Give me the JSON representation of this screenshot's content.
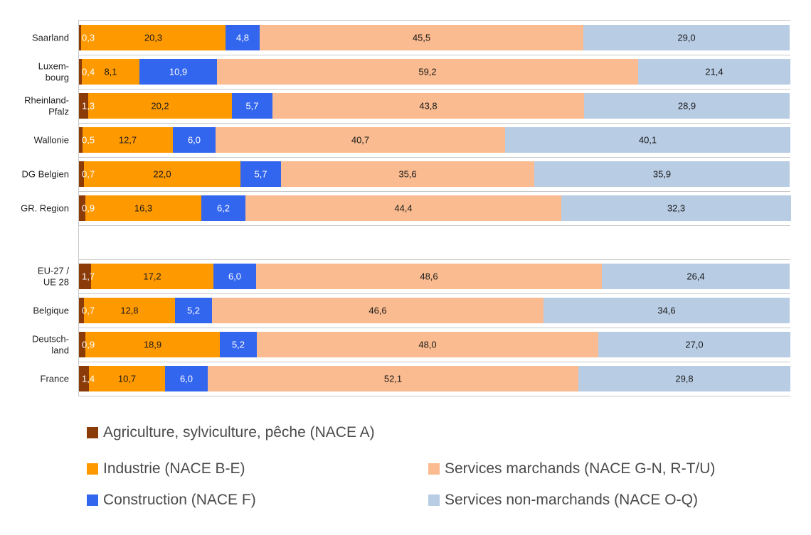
{
  "chart_data": {
    "type": "bar",
    "orientation": "horizontal",
    "stacked": true,
    "normalized_percent": true,
    "categories": [
      "Saarland",
      "Luxem-\nbourg",
      "Rheinland-\nPfalz",
      "Wallonie",
      "DG Belgien",
      "GR. Region",
      "EU-27 /\nUE 28",
      "Belgique",
      "Deutsch-\nland",
      "France"
    ],
    "series": [
      {
        "name": "Agriculture, sylviculture, pêche (NACE A)",
        "color": "#8b3b08",
        "label_color": "#ffffff",
        "values": [
          0.3,
          0.4,
          1.3,
          0.5,
          0.7,
          0.9,
          1.7,
          0.7,
          0.9,
          1.4
        ],
        "labels": [
          "0,3",
          "0,4",
          "1,3",
          "0,5",
          "0,7",
          "0,9",
          "1,7",
          "0,7",
          "0,9",
          "1,4"
        ]
      },
      {
        "name": "Industrie (NACE B-E)",
        "color": "#ff9900",
        "label_color": "#1a1a1a",
        "values": [
          20.3,
          8.1,
          20.2,
          12.7,
          22.0,
          16.3,
          17.2,
          12.8,
          18.9,
          10.7
        ],
        "labels": [
          "20,3",
          "8,1",
          "20,2",
          "12,7",
          "22,0",
          "16,3",
          "17,2",
          "12,8",
          "18,9",
          "10,7"
        ]
      },
      {
        "name": "Construction (NACE F)",
        "color": "#3366ee",
        "label_color": "#ffffff",
        "values": [
          4.8,
          10.9,
          5.7,
          6.0,
          5.7,
          6.2,
          6.0,
          5.2,
          5.2,
          6.0
        ],
        "labels": [
          "4,8",
          "10,9",
          "5,7",
          "6,0",
          "5,7",
          "6,2",
          "6,0",
          "5,2",
          "5,2",
          "6,0"
        ]
      },
      {
        "name": "Services marchands (NACE G-N, R-T/U)",
        "color": "#f9bb8f",
        "label_color": "#1a1a1a",
        "values": [
          45.5,
          59.2,
          43.8,
          40.7,
          35.6,
          44.4,
          48.6,
          46.6,
          48.0,
          52.1
        ],
        "labels": [
          "45,5",
          "59,2",
          "43,8",
          "40,7",
          "35,6",
          "44,4",
          "48,6",
          "46,6",
          "48,0",
          "52,1"
        ]
      },
      {
        "name": "Services non-marchands (NACE O-Q)",
        "color": "#b8cce4",
        "label_color": "#1a1a1a",
        "values": [
          29.0,
          21.4,
          28.9,
          40.1,
          35.9,
          32.3,
          26.4,
          34.6,
          27.0,
          29.8
        ],
        "labels": [
          "29,0",
          "21,4",
          "28,9",
          "40,1",
          "35,9",
          "32,3",
          "26,4",
          "34,6",
          "27,0",
          "29,8"
        ]
      }
    ],
    "xlim": [
      0,
      100
    ],
    "grid": false,
    "legend_position": "bottom"
  }
}
